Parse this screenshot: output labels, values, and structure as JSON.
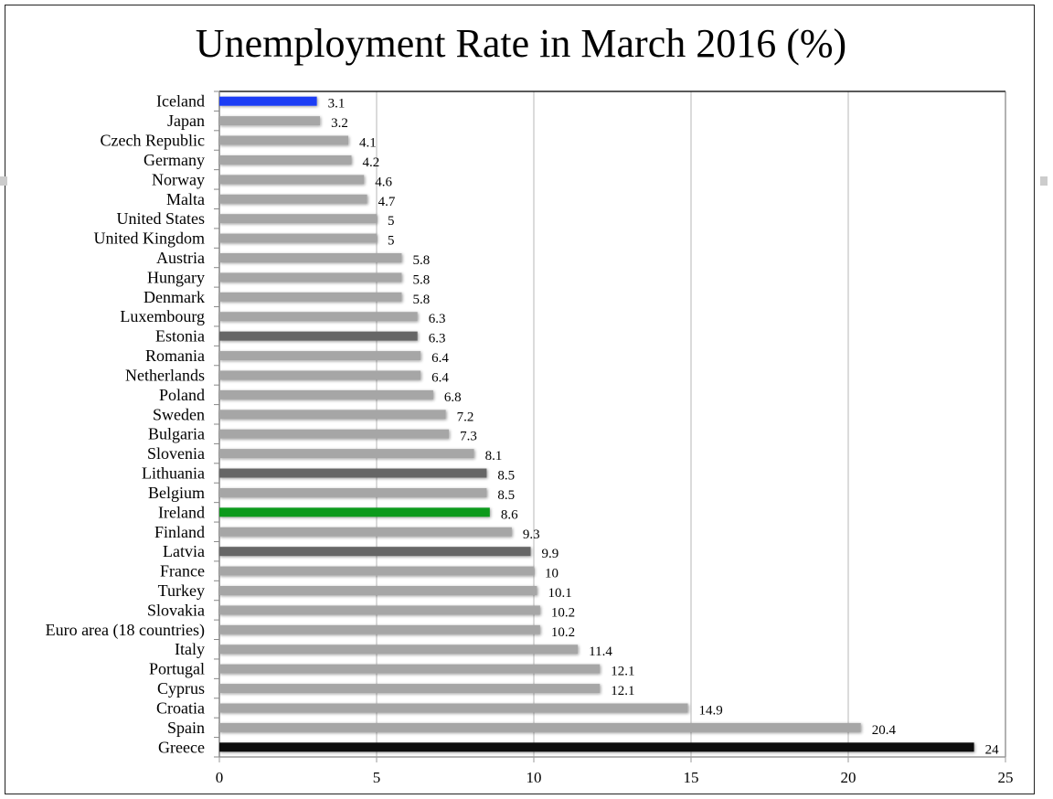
{
  "chart_data": {
    "type": "bar",
    "orientation": "horizontal",
    "title": "Unemployment Rate in March 2016 (%)",
    "xlabel": "",
    "ylabel": "",
    "xlim": [
      0,
      25
    ],
    "xticks": [
      0,
      5,
      10,
      15,
      20,
      25
    ],
    "grid": "vertical",
    "legend": "none",
    "categories": [
      "Iceland",
      "Japan",
      "Czech Republic",
      "Germany",
      "Norway",
      "Malta",
      "United States",
      "United Kingdom",
      "Austria",
      "Hungary",
      "Denmark",
      "Luxembourg",
      "Estonia",
      "Romania",
      "Netherlands",
      "Poland",
      "Sweden",
      "Bulgaria",
      "Slovenia",
      "Lithuania",
      "Belgium",
      "Ireland",
      "Finland",
      "Latvia",
      "France",
      "Turkey",
      "Slovakia",
      "Euro area (18 countries)",
      "Italy",
      "Portugal",
      "Cyprus",
      "Croatia",
      "Spain",
      "Greece"
    ],
    "values": [
      3.1,
      3.2,
      4.1,
      4.2,
      4.6,
      4.7,
      5,
      5,
      5.8,
      5.8,
      5.8,
      6.3,
      6.3,
      6.4,
      6.4,
      6.8,
      7.2,
      7.3,
      8.1,
      8.5,
      8.5,
      8.6,
      9.3,
      9.9,
      10,
      10.1,
      10.2,
      10.2,
      11.4,
      12.1,
      12.1,
      14.9,
      20.4,
      24
    ],
    "colors": {
      "default": "#a6a6a6",
      "Iceland": "#1a3cf5",
      "Ireland": "#119a1f",
      "Estonia": "#666666",
      "Lithuania": "#666666",
      "Latvia": "#666666",
      "Greece": "#111111"
    }
  }
}
